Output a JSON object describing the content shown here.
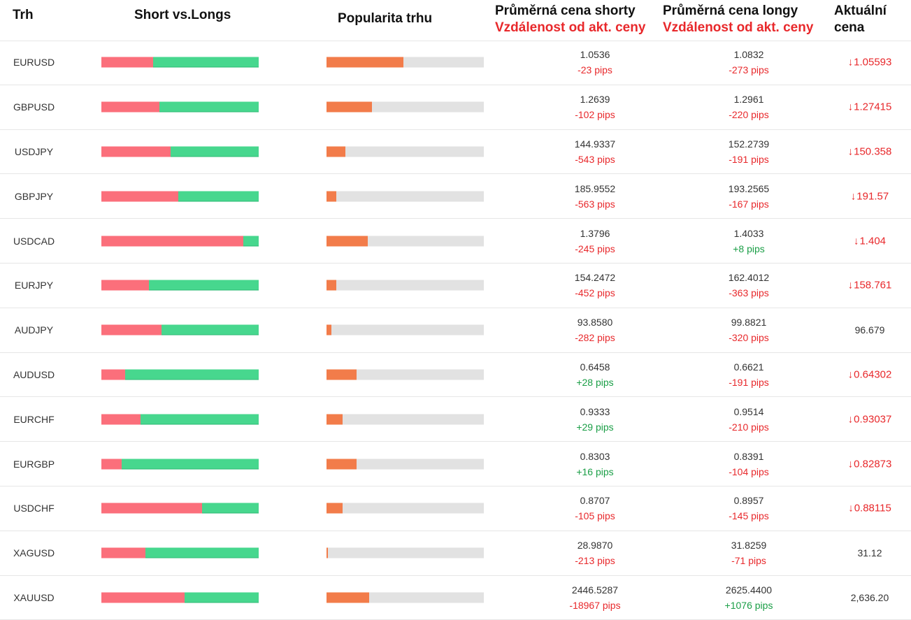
{
  "headers": {
    "market": "Trh",
    "short_vs_longs": "Short vs.Longs",
    "popularity": "Popularita trhu",
    "avg_short_line1": "Průměrná cena shorty",
    "avg_short_line2": "Vzdálenost od akt. ceny",
    "avg_long_line1": "Průměrná cena longy",
    "avg_long_line2": "Vzdálenost od akt. ceny",
    "current_line1": "Aktuální",
    "current_line2": "cena"
  },
  "colors": {
    "short": "#fb6f7b",
    "long": "#47d78e",
    "popularity": "#f27c4a",
    "negative": "#e8282b",
    "positive": "#1a9e46"
  },
  "rows": [
    {
      "symbol": "EURUSD",
      "short_pct": 33,
      "popularity_pct": 49,
      "avg_short": "1.0536",
      "short_pips": "-23 pips",
      "short_pips_sign": "neg",
      "avg_long": "1.0832",
      "long_pips": "-273 pips",
      "long_pips_sign": "neg",
      "current": "1.05593",
      "trend": "down"
    },
    {
      "symbol": "GBPUSD",
      "short_pct": 37,
      "popularity_pct": 29,
      "avg_short": "1.2639",
      "short_pips": "-102 pips",
      "short_pips_sign": "neg",
      "avg_long": "1.2961",
      "long_pips": "-220 pips",
      "long_pips_sign": "neg",
      "current": "1.27415",
      "trend": "down"
    },
    {
      "symbol": "USDJPY",
      "short_pct": 44,
      "popularity_pct": 12,
      "avg_short": "144.9337",
      "short_pips": "-543 pips",
      "short_pips_sign": "neg",
      "avg_long": "152.2739",
      "long_pips": "-191 pips",
      "long_pips_sign": "neg",
      "current": "150.358",
      "trend": "down"
    },
    {
      "symbol": "GBPJPY",
      "short_pct": 49,
      "popularity_pct": 6,
      "avg_short": "185.9552",
      "short_pips": "-563 pips",
      "short_pips_sign": "neg",
      "avg_long": "193.2565",
      "long_pips": "-167 pips",
      "long_pips_sign": "neg",
      "current": "191.57",
      "trend": "down"
    },
    {
      "symbol": "USDCAD",
      "short_pct": 90,
      "popularity_pct": 26,
      "avg_short": "1.3796",
      "short_pips": "-245 pips",
      "short_pips_sign": "neg",
      "avg_long": "1.4033",
      "long_pips": "+8 pips",
      "long_pips_sign": "pos",
      "current": "1.404",
      "trend": "down"
    },
    {
      "symbol": "EURJPY",
      "short_pct": 30,
      "popularity_pct": 6,
      "avg_short": "154.2472",
      "short_pips": "-452 pips",
      "short_pips_sign": "neg",
      "avg_long": "162.4012",
      "long_pips": "-363 pips",
      "long_pips_sign": "neg",
      "current": "158.761",
      "trend": "down"
    },
    {
      "symbol": "AUDJPY",
      "short_pct": 38,
      "popularity_pct": 3,
      "avg_short": "93.8580",
      "short_pips": "-282 pips",
      "short_pips_sign": "neg",
      "avg_long": "99.8821",
      "long_pips": "-320 pips",
      "long_pips_sign": "neg",
      "current": "96.679",
      "trend": "none"
    },
    {
      "symbol": "AUDUSD",
      "short_pct": 15,
      "popularity_pct": 19,
      "avg_short": "0.6458",
      "short_pips": "+28 pips",
      "short_pips_sign": "pos",
      "avg_long": "0.6621",
      "long_pips": "-191 pips",
      "long_pips_sign": "neg",
      "current": "0.64302",
      "trend": "down"
    },
    {
      "symbol": "EURCHF",
      "short_pct": 25,
      "popularity_pct": 10,
      "avg_short": "0.9333",
      "short_pips": "+29 pips",
      "short_pips_sign": "pos",
      "avg_long": "0.9514",
      "long_pips": "-210 pips",
      "long_pips_sign": "neg",
      "current": "0.93037",
      "trend": "down"
    },
    {
      "symbol": "EURGBP",
      "short_pct": 13,
      "popularity_pct": 19,
      "avg_short": "0.8303",
      "short_pips": "+16 pips",
      "short_pips_sign": "pos",
      "avg_long": "0.8391",
      "long_pips": "-104 pips",
      "long_pips_sign": "neg",
      "current": "0.82873",
      "trend": "down"
    },
    {
      "symbol": "USDCHF",
      "short_pct": 64,
      "popularity_pct": 10,
      "avg_short": "0.8707",
      "short_pips": "-105 pips",
      "short_pips_sign": "neg",
      "avg_long": "0.8957",
      "long_pips": "-145 pips",
      "long_pips_sign": "neg",
      "current": "0.88115",
      "trend": "down"
    },
    {
      "symbol": "XAGUSD",
      "short_pct": 28,
      "popularity_pct": 1,
      "avg_short": "28.9870",
      "short_pips": "-213 pips",
      "short_pips_sign": "neg",
      "avg_long": "31.8259",
      "long_pips": "-71 pips",
      "long_pips_sign": "neg",
      "current": "31.12",
      "trend": "none"
    },
    {
      "symbol": "XAUUSD",
      "short_pct": 53,
      "popularity_pct": 27,
      "avg_short": "2446.5287",
      "short_pips": "-18967 pips",
      "short_pips_sign": "neg",
      "avg_long": "2625.4400",
      "long_pips": "+1076 pips",
      "long_pips_sign": "pos",
      "current": "2,636.20",
      "trend": "none"
    }
  ]
}
